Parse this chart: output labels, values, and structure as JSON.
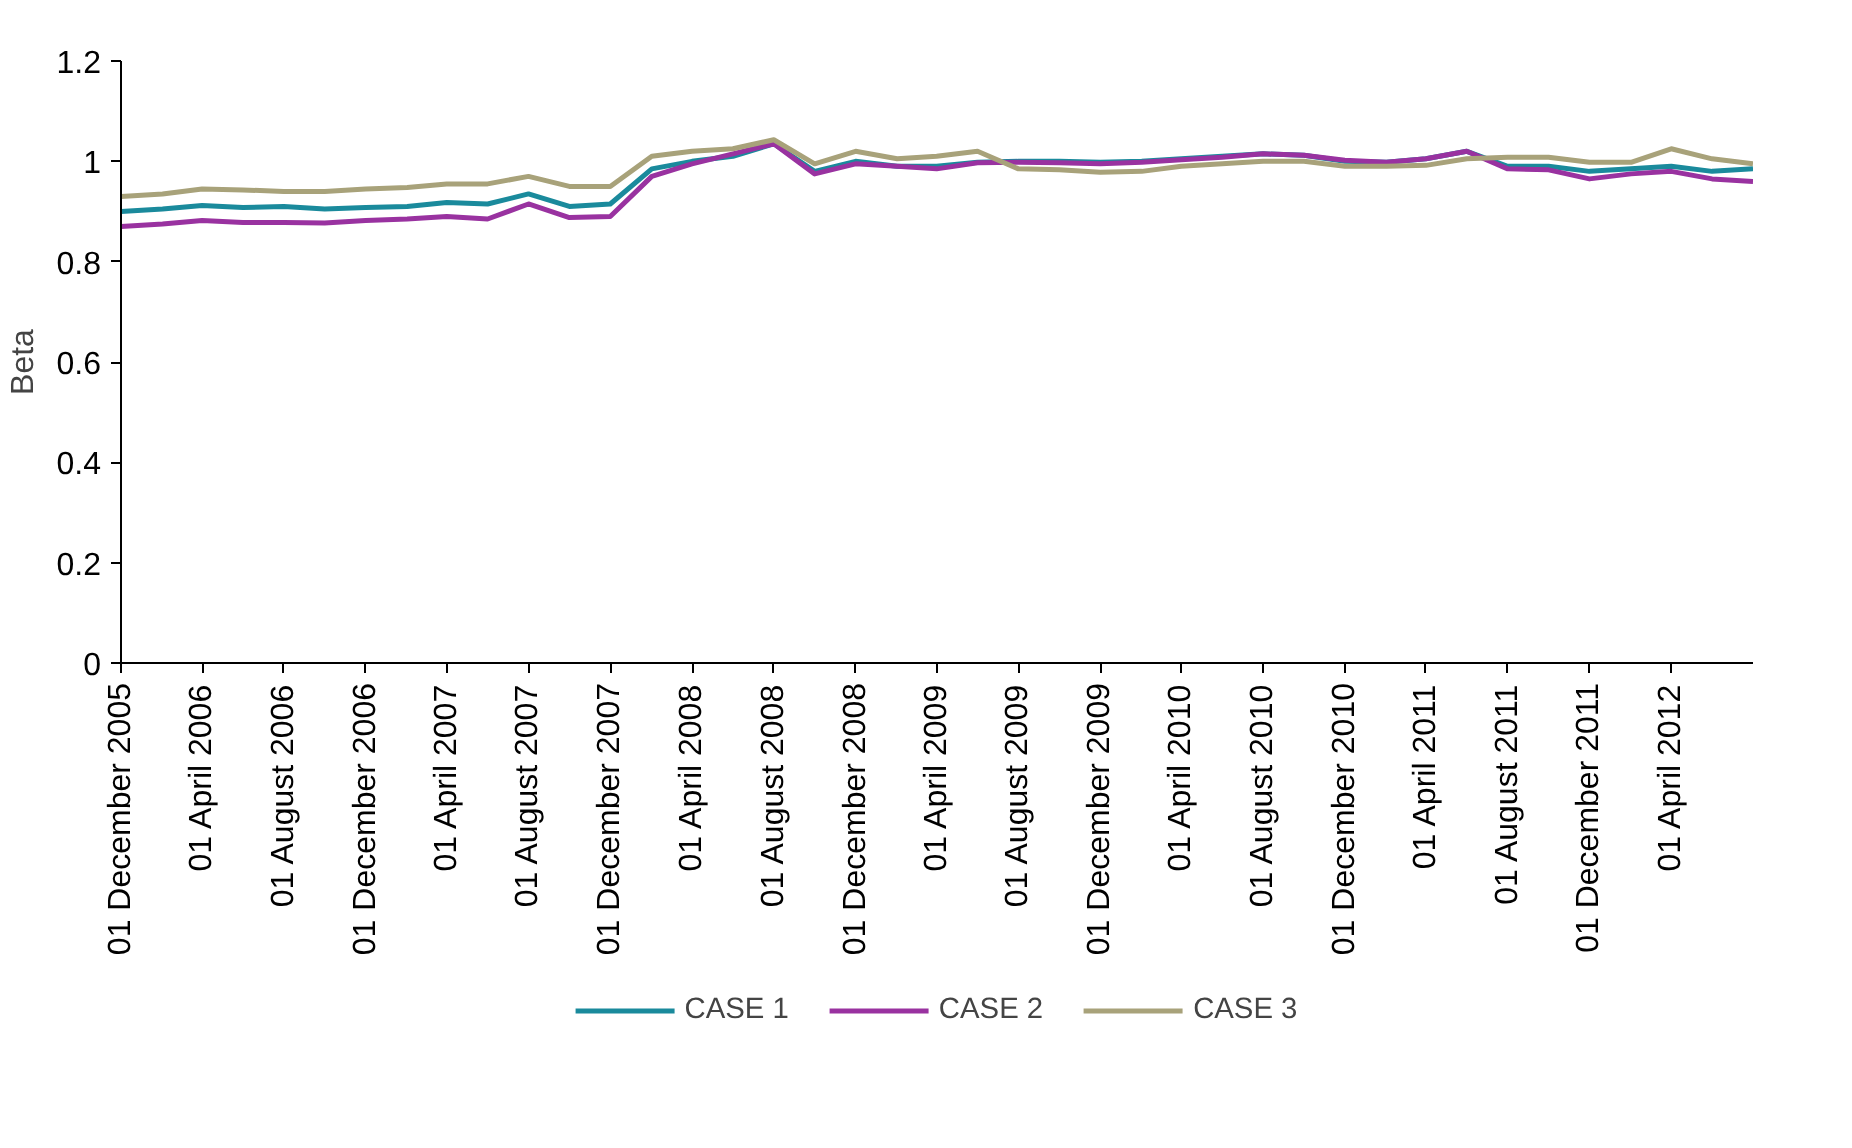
{
  "chart_data": {
    "type": "line",
    "ylabel": "Beta",
    "x": [
      "2005-12",
      "2006-02",
      "2006-04",
      "2006-06",
      "2006-08",
      "2006-10",
      "2006-12",
      "2007-02",
      "2007-04",
      "2007-06",
      "2007-08",
      "2007-10",
      "2007-12",
      "2008-02",
      "2008-04",
      "2008-06",
      "2008-08",
      "2008-10",
      "2008-12",
      "2009-02",
      "2009-04",
      "2009-06",
      "2009-08",
      "2009-10",
      "2009-12",
      "2010-02",
      "2010-04",
      "2010-06",
      "2010-08",
      "2010-10",
      "2010-12",
      "2011-02",
      "2011-04",
      "2011-06",
      "2011-08",
      "2011-10",
      "2011-12",
      "2012-02",
      "2012-04",
      "2012-06",
      "2012-08"
    ],
    "series": [
      {
        "name": "CASE 1",
        "color": "#1a8a9c",
        "values": [
          0.9,
          0.905,
          0.912,
          0.908,
          0.91,
          0.905,
          0.908,
          0.91,
          0.918,
          0.915,
          0.935,
          0.91,
          0.915,
          0.985,
          1.0,
          1.01,
          1.035,
          0.98,
          1.0,
          0.99,
          0.99,
          0.998,
          1.0,
          1.0,
          0.998,
          1.0,
          1.005,
          1.01,
          1.015,
          1.012,
          1.0,
          0.998,
          1.005,
          1.02,
          0.99,
          0.99,
          0.98,
          0.985,
          0.99,
          0.98,
          0.985
        ]
      },
      {
        "name": "CASE 2",
        "color": "#9932a0",
        "values": [
          0.87,
          0.875,
          0.882,
          0.878,
          0.878,
          0.877,
          0.882,
          0.885,
          0.89,
          0.885,
          0.915,
          0.888,
          0.89,
          0.97,
          0.995,
          1.015,
          1.035,
          0.975,
          0.995,
          0.99,
          0.985,
          0.997,
          0.998,
          0.997,
          0.995,
          0.998,
          1.003,
          1.008,
          1.015,
          1.012,
          1.002,
          0.998,
          1.005,
          1.02,
          0.985,
          0.983,
          0.965,
          0.975,
          0.98,
          0.965,
          0.96
        ]
      },
      {
        "name": "CASE 3",
        "color": "#a8a27a",
        "values": [
          0.93,
          0.935,
          0.945,
          0.943,
          0.94,
          0.94,
          0.945,
          0.948,
          0.955,
          0.955,
          0.97,
          0.95,
          0.95,
          1.01,
          1.02,
          1.025,
          1.043,
          0.995,
          1.02,
          1.005,
          1.01,
          1.02,
          0.985,
          0.983,
          0.978,
          0.98,
          0.99,
          0.995,
          1.0,
          1.0,
          0.99,
          0.99,
          0.992,
          1.005,
          1.008,
          1.008,
          0.998,
          0.998,
          1.025,
          1.005,
          0.995
        ]
      }
    ],
    "xlim": [
      "2005-12",
      "2012-08"
    ],
    "xticks": [
      {
        "value": "2005-12",
        "label": "01 December 2005"
      },
      {
        "value": "2006-04",
        "label": "01 April 2006"
      },
      {
        "value": "2006-08",
        "label": "01 August 2006"
      },
      {
        "value": "2006-12",
        "label": "01 December 2006"
      },
      {
        "value": "2007-04",
        "label": "01 April 2007"
      },
      {
        "value": "2007-08",
        "label": "01 August 2007"
      },
      {
        "value": "2007-12",
        "label": "01 December 2007"
      },
      {
        "value": "2008-04",
        "label": "01 April 2008"
      },
      {
        "value": "2008-08",
        "label": "01 August 2008"
      },
      {
        "value": "2008-12",
        "label": "01 December 2008"
      },
      {
        "value": "2009-04",
        "label": "01 April 2009"
      },
      {
        "value": "2009-08",
        "label": "01 August 2009"
      },
      {
        "value": "2009-12",
        "label": "01 December 2009"
      },
      {
        "value": "2010-04",
        "label": "01 April 2010"
      },
      {
        "value": "2010-08",
        "label": "01 August 2010"
      },
      {
        "value": "2010-12",
        "label": "01 December 2010"
      },
      {
        "value": "2011-04",
        "label": "01 April 2011"
      },
      {
        "value": "2011-08",
        "label": "01 August 2011"
      },
      {
        "value": "2011-12",
        "label": "01 December 2011"
      },
      {
        "value": "2012-04",
        "label": "01 April 2012"
      }
    ],
    "ylim": [
      0,
      1.2
    ],
    "yticks": [
      0,
      {
        "value": 0.2,
        "label": "0.2"
      },
      {
        "value": 0.4,
        "label": "0.4"
      },
      {
        "value": 0.6,
        "label": "0.6"
      },
      {
        "value": 0.8,
        "label": "0.8"
      },
      1,
      {
        "value": 1.2,
        "label": "1.2"
      }
    ],
    "grid": false,
    "legend": "bottom",
    "marker": "none",
    "line_style": "solid"
  }
}
